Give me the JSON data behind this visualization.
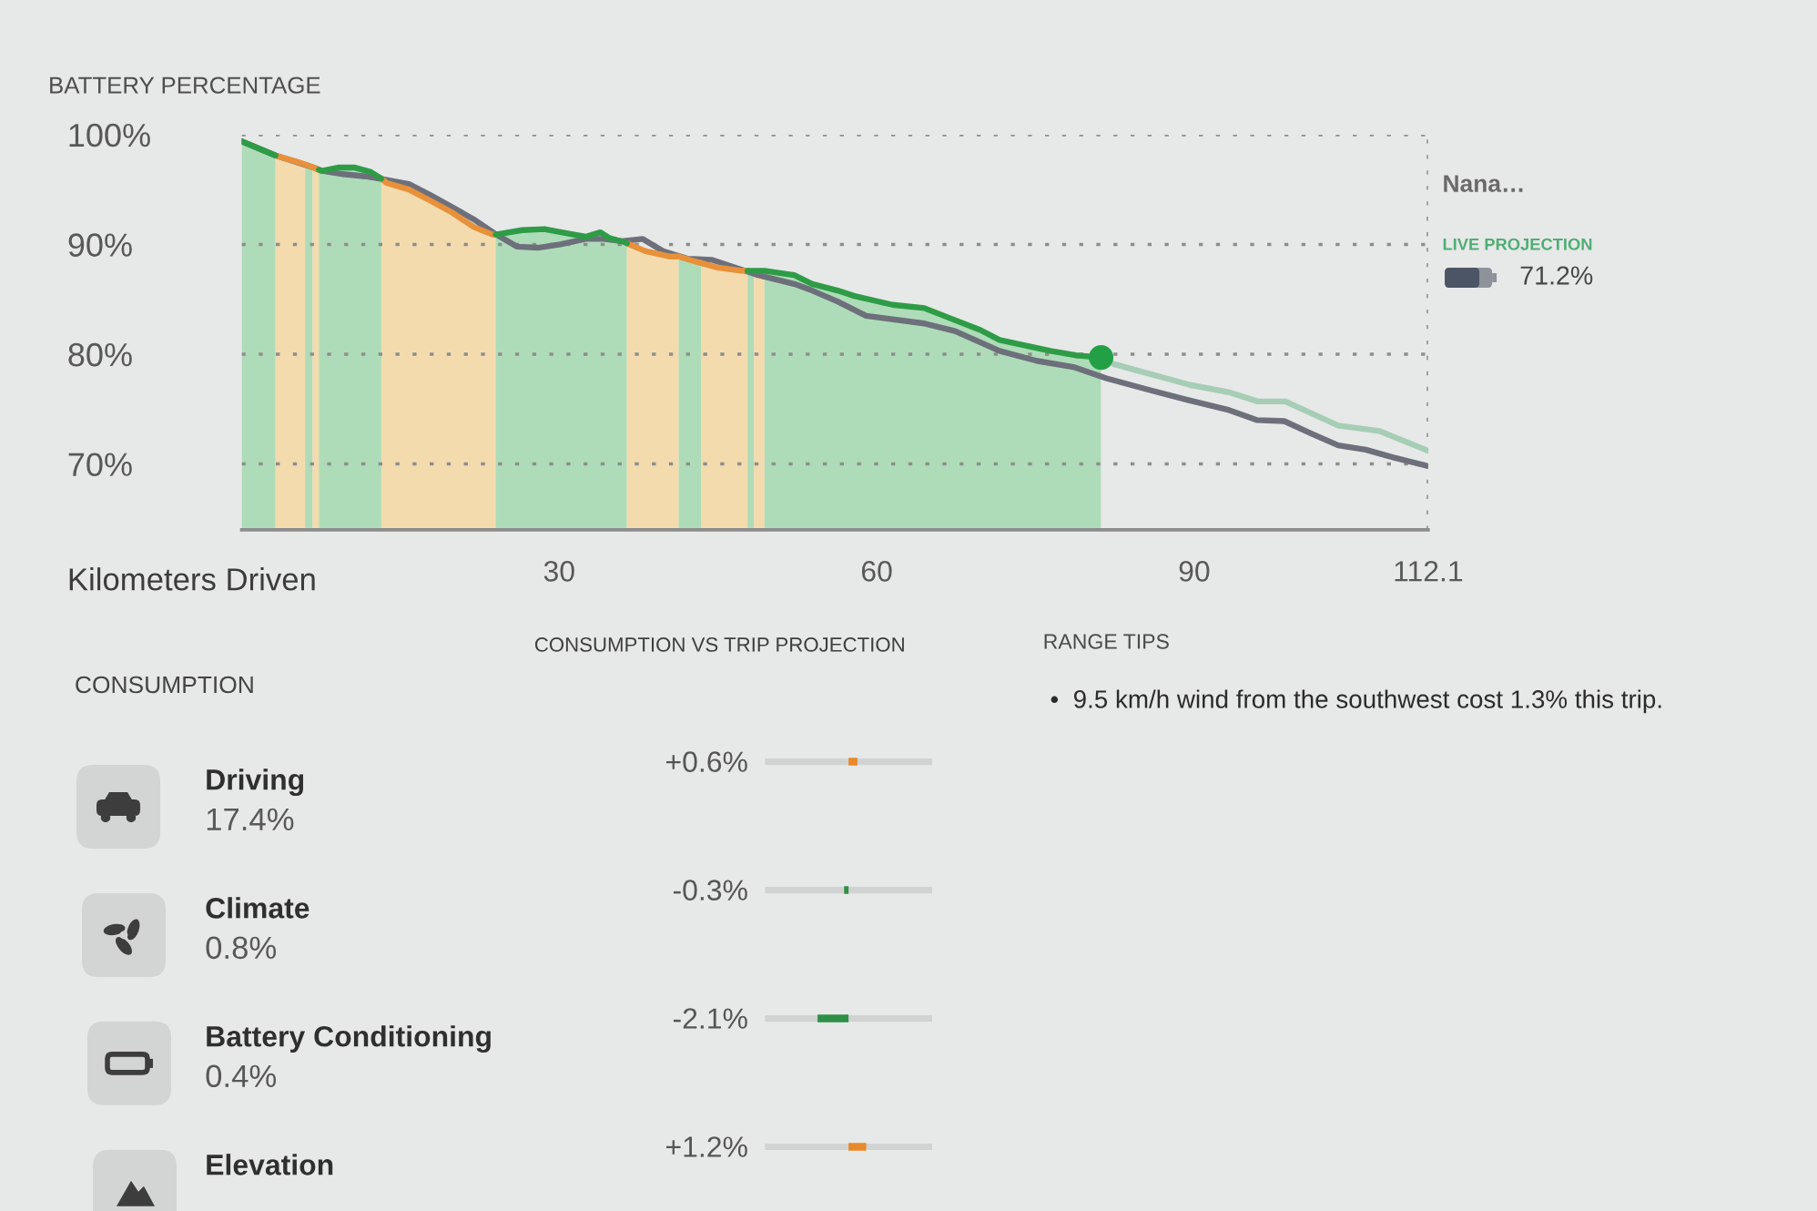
{
  "chart_data": [
    {
      "type": "line",
      "xlabel": "Kilometers Driven",
      "ylabel": "BATTERY PERCENTAGE",
      "x": [
        0,
        3.2,
        5.0,
        6.0,
        6.8,
        7.3,
        7.6,
        9.1,
        10.7,
        12.2,
        13.2,
        13.7,
        15.8,
        17.8,
        19.9,
        21.9,
        23.7,
        24.0,
        26.5,
        28.6,
        30.8,
        32.5,
        33.9,
        34.7,
        36.2,
        36.4,
        38.1,
        40.4,
        41.3,
        42.3,
        43.4,
        44.9,
        47.2,
        47.8,
        49.4,
        52.2,
        53.9,
        56.3,
        57.9,
        61.5,
        64.5,
        67.4,
        69.8,
        71.6,
        74.0,
        76.4,
        78.8,
        81.2
      ],
      "series": [
        {
          "type": "line",
          "color": "#6d707b",
          "x": [
            0,
            3.2,
            6.8,
            7.6,
            9.6,
            11.7,
            13.0,
            15.8,
            17.8,
            19.9,
            21.9,
            23.9,
            26.0,
            28.0,
            30.1,
            32.5,
            34.2,
            35.9,
            37.9,
            39.8,
            42.1,
            44.4,
            46.6,
            48.8,
            52.2,
            53.9,
            56.3,
            59.0,
            64.5,
            67.4,
            71.6,
            75.1,
            78.7,
            81.7,
            85.9,
            89.5,
            93.3,
            95.9,
            98.5,
            101.0,
            103.6,
            106.2,
            108.8,
            112.1
          ],
          "values": [
            99.4,
            98.1,
            97.0,
            96.7,
            96.4,
            96.2,
            96.0,
            95.5,
            94.5,
            93.4,
            92.3,
            91.0,
            89.8,
            89.7,
            90.0,
            90.5,
            90.5,
            90.3,
            90.5,
            89.4,
            88.7,
            88.6,
            87.9,
            87.2,
            86.4,
            85.8,
            84.8,
            83.5,
            82.8,
            82.1,
            80.3,
            79.4,
            78.8,
            77.8,
            76.7,
            75.8,
            74.9,
            74.0,
            73.9,
            72.8,
            71.7,
            71.3,
            70.6,
            69.8
          ]
        },
        {
          "type": "line",
          "color": "#a6cdb5",
          "x": [
            81.2,
            82.4,
            89.6,
            93.4,
            96.0,
            98.6,
            101.1,
            103.6,
            107.5,
            112.1
          ],
          "values": [
            79.7,
            79.1,
            77.2,
            76.5,
            75.7,
            75.7,
            74.6,
            73.5,
            73.0,
            71.2
          ]
        },
        {
          "type": "line",
          "color": "#e8913a",
          "values": [
            null,
            98.1,
            97.6,
            97.3,
            97.0,
            96.8,
            null,
            null,
            null,
            null,
            96.0,
            95.6,
            95.0,
            94.0,
            92.9,
            91.6,
            90.9,
            90.9,
            null,
            null,
            null,
            null,
            null,
            null,
            null,
            90.1,
            89.4,
            88.9,
            88.9,
            88.6,
            88.3,
            87.9,
            87.6,
            87.6,
            null,
            null,
            null,
            null,
            null,
            null,
            null,
            null,
            null,
            null,
            null,
            null,
            null,
            null
          ]
        },
        {
          "type": "line",
          "color": "#2e9c46",
          "values": [
            99.4,
            98.1,
            null,
            null,
            null,
            96.8,
            96.7,
            97.0,
            97.0,
            96.6,
            96.0,
            null,
            null,
            null,
            null,
            null,
            null,
            90.9,
            91.3,
            91.4,
            91.0,
            90.7,
            91.1,
            90.6,
            90.2,
            90.1,
            null,
            null,
            null,
            null,
            null,
            null,
            null,
            87.6,
            87.6,
            87.2,
            86.4,
            85.8,
            85.3,
            84.5,
            84.2,
            83.1,
            82.2,
            81.3,
            80.8,
            80.3,
            79.9,
            79.7
          ]
        },
        {
          "type": "scatter",
          "color": "#23a045",
          "marker": "circle",
          "x": [
            81.2
          ],
          "values": [
            79.7
          ]
        }
      ],
      "xlim": [
        0,
        112.1
      ],
      "ylim": [
        64,
        100
      ],
      "xticks": [
        30,
        60,
        90,
        112.1
      ],
      "yticks": [
        {
          "value": 70,
          "label": "70%"
        },
        {
          "value": 80,
          "label": "80%"
        },
        {
          "value": 90,
          "label": "90%"
        },
        {
          "value": 100,
          "label": "100%"
        }
      ],
      "grid": "y",
      "bands": [
        {
          "axis": "x",
          "from": 0,
          "to": 3.2,
          "color": "#aedcb8"
        },
        {
          "axis": "x",
          "from": 3.2,
          "to": 6.0,
          "color": "#f3dbae"
        },
        {
          "axis": "x",
          "from": 6.0,
          "to": 6.7,
          "color": "#aedcb8"
        },
        {
          "axis": "x",
          "from": 6.7,
          "to": 7.3,
          "color": "#f3dbae"
        },
        {
          "axis": "x",
          "from": 7.3,
          "to": 13.2,
          "color": "#aedcb8"
        },
        {
          "axis": "x",
          "from": 13.2,
          "to": 24.0,
          "color": "#f3dbae"
        },
        {
          "axis": "x",
          "from": 24.0,
          "to": 36.4,
          "color": "#aedcb8"
        },
        {
          "axis": "x",
          "from": 36.4,
          "to": 41.3,
          "color": "#f3dbae"
        },
        {
          "axis": "x",
          "from": 41.3,
          "to": 43.4,
          "color": "#aedcb8"
        },
        {
          "axis": "x",
          "from": 43.4,
          "to": 47.8,
          "color": "#f3dbae"
        },
        {
          "axis": "x",
          "from": 47.8,
          "to": 48.4,
          "color": "#aedcb8"
        },
        {
          "axis": "x",
          "from": 48.4,
          "to": 49.4,
          "color": "#f3dbae"
        },
        {
          "axis": "x",
          "from": 49.4,
          "to": 81.2,
          "color": "#aedcb8"
        }
      ],
      "ref_lines": [
        {
          "axis": "x",
          "value": 112.1,
          "line_style": "dotted",
          "color": "#9a9a9a"
        }
      ],
      "annotations": [
        "Nana…",
        "LIVE PROJECTION",
        "71.2%"
      ]
    },
    {
      "type": "bar",
      "orientation": "horizontal",
      "title": "CONSUMPTION VS TRIP PROJECTION",
      "ylabel": "CONSUMPTION",
      "categories": [
        "Driving\n17.4%",
        "Climate\n0.8%",
        "Battery Conditioning\n0.4%",
        "Elevation"
      ],
      "values": [
        0.6,
        -0.3,
        -2.1,
        1.2
      ],
      "colors": [
        "#e8892a",
        "#2e8f47",
        "#2e8f47",
        "#e8892a"
      ],
      "value_labels": [
        "+0.6%",
        "-0.3%",
        "-2.1%",
        "+1.2%"
      ],
      "grid": "y",
      "tick_labels": "y"
    },
    {
      "type": "other",
      "title": "RANGE TIPS",
      "annotations": [
        "•  9.5 km/h wind from the southwest cost 1.3% this trip."
      ]
    }
  ]
}
